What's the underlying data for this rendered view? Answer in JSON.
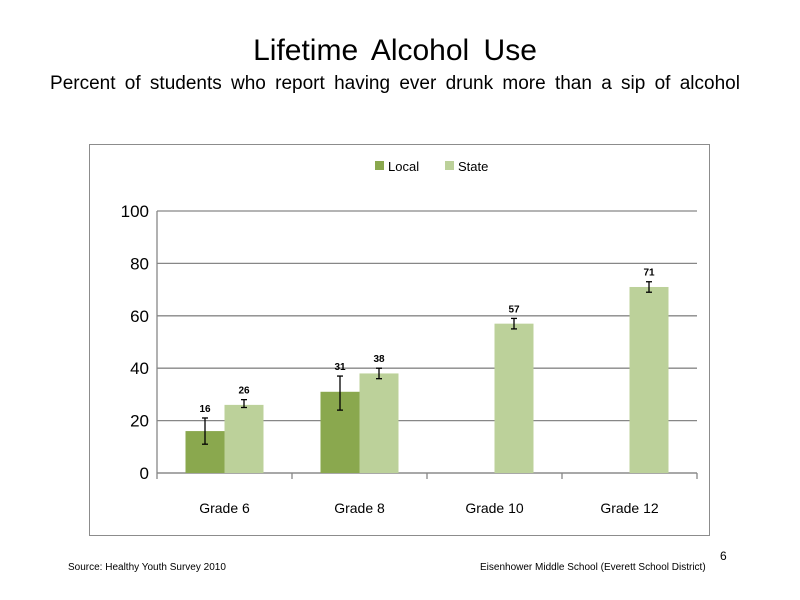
{
  "slide": {
    "title": "Lifetime  Alcohol  Use",
    "subtitle": "Percent of students who report having ever drunk more than a sip of alcohol",
    "source": "Source: Healthy Youth Survey 2010",
    "school": "Eisenhower Middle  School (Everett School District)",
    "page_number": "6"
  },
  "chart_data": {
    "type": "bar",
    "title": "",
    "xlabel": "",
    "ylabel": "",
    "categories": [
      "Grade 6",
      "Grade 8",
      "Grade 10",
      "Grade 12"
    ],
    "series": [
      {
        "name": "Local",
        "color": "#8aa84e",
        "values": [
          16,
          31,
          null,
          null
        ],
        "labels": [
          "16",
          "31",
          "",
          ""
        ],
        "error": [
          [
            11,
            21
          ],
          [
            24,
            37
          ],
          null,
          null
        ]
      },
      {
        "name": "State",
        "color": "#bcd19a",
        "values": [
          26,
          38,
          57,
          71
        ],
        "labels": [
          "26",
          "38",
          "57",
          "71"
        ],
        "error": [
          [
            25,
            28
          ],
          [
            36,
            40
          ],
          [
            55,
            59
          ],
          [
            69,
            73
          ]
        ]
      }
    ],
    "ylim": [
      0,
      100
    ],
    "yticks": [
      "0",
      "20",
      "40",
      "60",
      "80",
      "100"
    ],
    "grid": true,
    "legend": "top"
  }
}
